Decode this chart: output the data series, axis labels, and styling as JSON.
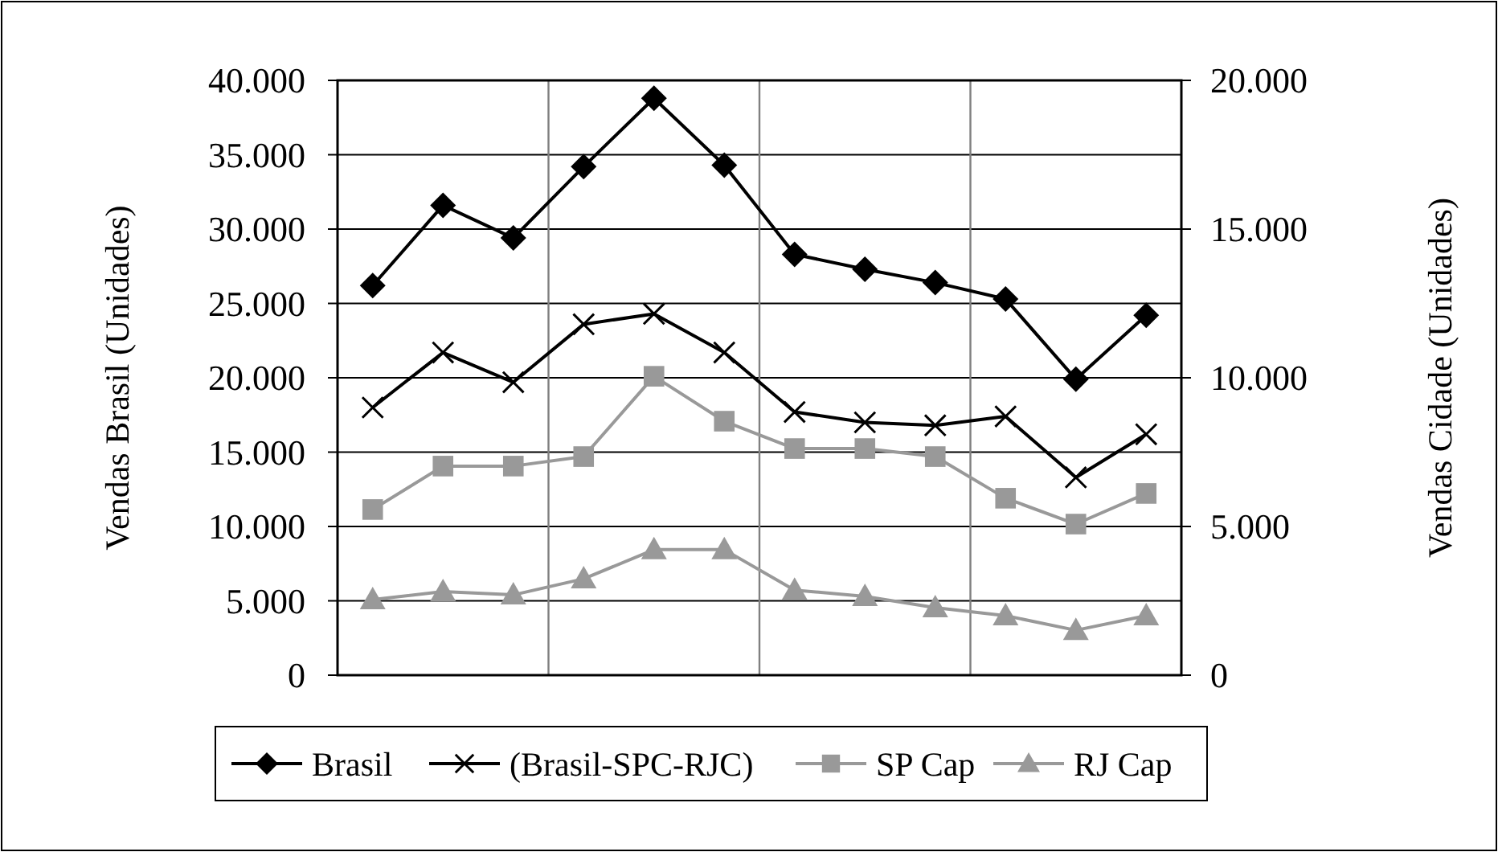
{
  "chart_data": {
    "type": "line",
    "ylabel": "Vendas Brasil (Unidades)",
    "y2label": "Vendas Cidade (Unidades)",
    "categories": [
      null,
      null,
      null,
      null,
      null,
      null,
      null,
      null,
      null,
      null,
      null,
      null
    ],
    "ylim": [
      0,
      40000
    ],
    "yticks": [
      {
        "value": 0,
        "label": "0"
      },
      {
        "value": 5000,
        "label": "5.000"
      },
      {
        "value": 10000,
        "label": "10.000"
      },
      {
        "value": 15000,
        "label": "15.000"
      },
      {
        "value": 20000,
        "label": "20.000"
      },
      {
        "value": 25000,
        "label": "25.000"
      },
      {
        "value": 30000,
        "label": "30.000"
      },
      {
        "value": 35000,
        "label": "35.000"
      },
      {
        "value": 40000,
        "label": "40.000"
      }
    ],
    "y2lim": [
      0,
      20000
    ],
    "y2ticks": [
      {
        "value": 0,
        "label": "0"
      },
      {
        "value": 5000,
        "label": "5.000"
      },
      {
        "value": 10000,
        "label": "10.000"
      },
      {
        "value": 15000,
        "label": "15.000"
      },
      {
        "value": 20000,
        "label": "20.000"
      }
    ],
    "grid": true,
    "legend": "bottom",
    "series": [
      {
        "name": "Brasil",
        "color": "#000000",
        "marker": "diamond",
        "values": [
          26200,
          31600,
          29400,
          34200,
          38800,
          34300,
          28300,
          27300,
          26400,
          25300,
          19900,
          24200
        ]
      },
      {
        "name": "(Brasil-SPC-RJC)",
        "color": "#000000",
        "marker": "cross",
        "values": [
          18000,
          21700,
          19700,
          23600,
          24300,
          21700,
          17700,
          17000,
          16800,
          17400,
          13300,
          16200
        ]
      },
      {
        "name": "SP Cap",
        "color": "#999999",
        "marker": "square",
        "axis": "y2",
        "values": [
          5570,
          7030,
          7030,
          7350,
          10050,
          8540,
          7620,
          7620,
          7350,
          5950,
          5080,
          6110
        ]
      },
      {
        "name": "RJ Cap",
        "color": "#999999",
        "marker": "triangle",
        "axis": "y2",
        "values": [
          2540,
          2810,
          2700,
          3240,
          4220,
          4220,
          2860,
          2650,
          2270,
          2000,
          1510,
          2000
        ]
      }
    ]
  }
}
